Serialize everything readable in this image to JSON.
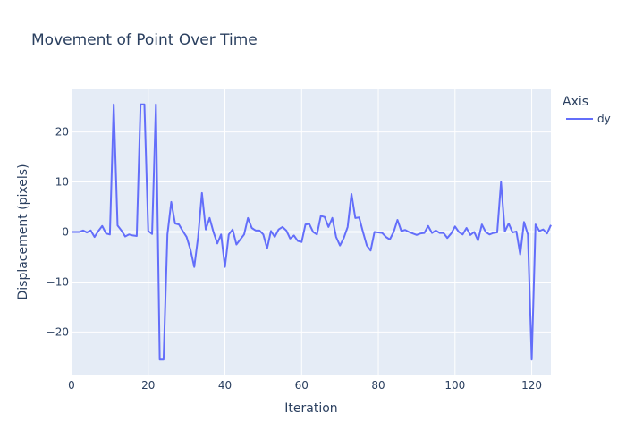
{
  "chart_data": {
    "type": "line",
    "title": "Movement of Point Over Time",
    "xlabel": "Iteration",
    "ylabel": "Displacement (pixels)",
    "xlim": [
      0,
      125
    ],
    "ylim": [
      -28.5,
      28.5
    ],
    "x_ticks": [
      0,
      20,
      40,
      60,
      80,
      100,
      120
    ],
    "y_ticks": [
      -20,
      -10,
      0,
      10,
      20
    ],
    "grid": true,
    "plot_bg": "#e5ecf6",
    "legend": {
      "title": "Axis",
      "position": "right"
    },
    "series": [
      {
        "name": "dy",
        "color": "#636efa",
        "x": [
          0,
          1,
          2,
          3,
          4,
          5,
          6,
          7,
          8,
          9,
          10,
          11,
          12,
          13,
          14,
          15,
          16,
          17,
          18,
          19,
          20,
          21,
          22,
          23,
          24,
          25,
          26,
          27,
          28,
          29,
          30,
          31,
          32,
          33,
          34,
          35,
          36,
          37,
          38,
          39,
          40,
          41,
          42,
          43,
          44,
          45,
          46,
          47,
          48,
          49,
          50,
          51,
          52,
          53,
          54,
          55,
          56,
          57,
          58,
          59,
          60,
          61,
          62,
          63,
          64,
          65,
          66,
          67,
          68,
          69,
          70,
          71,
          72,
          73,
          74,
          75,
          76,
          77,
          78,
          79,
          80,
          81,
          82,
          83,
          84,
          85,
          86,
          87,
          88,
          89,
          90,
          91,
          92,
          93,
          94,
          95,
          96,
          97,
          98,
          99,
          100,
          101,
          102,
          103,
          104,
          105,
          106,
          107,
          108,
          109,
          110,
          111,
          112,
          113,
          114,
          115,
          116,
          117,
          118,
          119,
          120,
          121,
          122,
          123,
          124,
          125
        ],
        "values": [
          0,
          0,
          0,
          0.3,
          -0.1,
          0.3,
          -1,
          0.2,
          1.2,
          -0.3,
          -0.5,
          25.5,
          1.3,
          0.3,
          -0.9,
          -0.5,
          -0.7,
          -0.8,
          25.5,
          25.5,
          0.2,
          -0.4,
          25.5,
          -25.5,
          -25.5,
          -0.5,
          6,
          1.7,
          1.5,
          0.2,
          -1,
          -3.5,
          -7,
          -1,
          7.8,
          0.5,
          2.8,
          0,
          -2.3,
          -0.5,
          -7,
          -0.5,
          0.5,
          -2.5,
          -1.5,
          -0.5,
          2.8,
          0.8,
          0.3,
          0.3,
          -0.5,
          -3.3,
          0.2,
          -1,
          0.5,
          1,
          0.3,
          -1.3,
          -0.7,
          -1.8,
          -2,
          1.5,
          1.6,
          0,
          -0.5,
          3.2,
          3,
          1,
          2.8,
          -1,
          -2.7,
          -1.2,
          1,
          7.6,
          2.8,
          2.9,
          0,
          -2.7,
          -3.7,
          0,
          -0.1,
          -0.2,
          -1,
          -1.5,
          0,
          2.4,
          0.2,
          0.4,
          0,
          -0.3,
          -0.6,
          -0.3,
          -0.2,
          1.2,
          -0.2,
          0.3,
          -0.2,
          -0.2,
          -1.2,
          -0.3,
          1.1,
          0,
          -0.5,
          0.8,
          -0.6,
          0,
          -1.7,
          1.5,
          0,
          -0.5,
          -0.2,
          -0.1,
          10,
          0.1,
          1.7,
          -0.1,
          0.1,
          -4.5,
          2,
          -0.5,
          -25.5,
          1.5,
          0.2,
          0.5,
          -0.3,
          1.4
        ]
      }
    ]
  }
}
